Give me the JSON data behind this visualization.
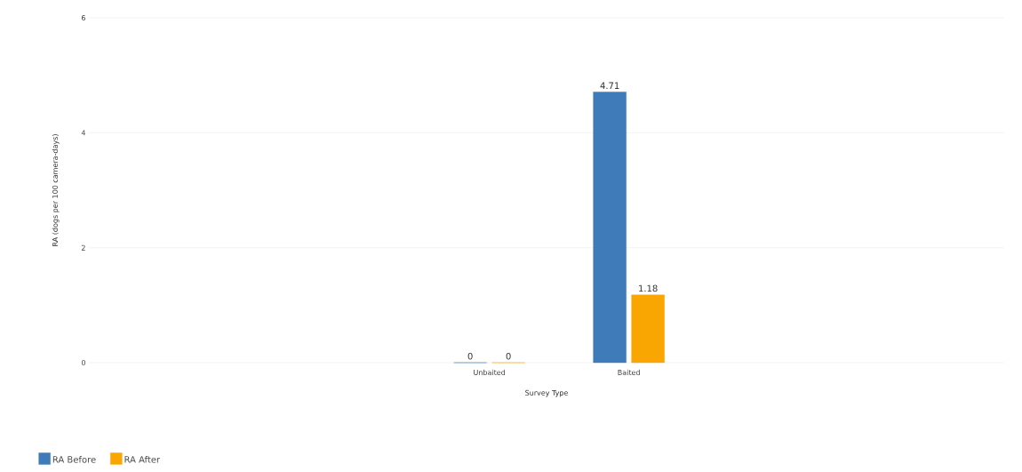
{
  "chart_data": {
    "type": "bar",
    "xlabel": "Survey Type",
    "ylabel": "RA (dogs per 100 camera-days)",
    "categories": [
      "Unbaited",
      "Baited"
    ],
    "series": [
      {
        "name": "RA Before",
        "color": "#3f7ab9",
        "values": [
          0,
          4.71
        ]
      },
      {
        "name": "RA After",
        "color": "#f9a602",
        "values": [
          0,
          1.18
        ]
      }
    ],
    "ylim": [
      0,
      6
    ],
    "yticks": [
      0,
      2,
      4,
      6
    ],
    "grid": "y",
    "legend": "bottom left",
    "data_labels": true
  }
}
